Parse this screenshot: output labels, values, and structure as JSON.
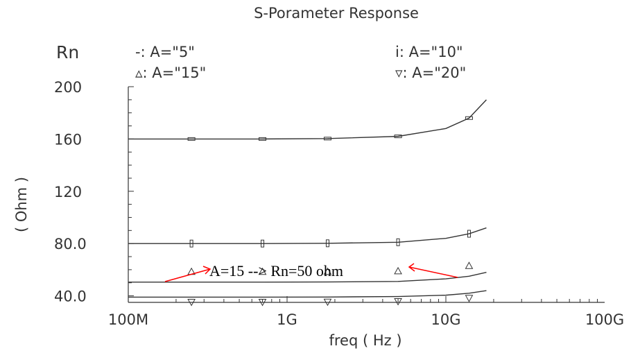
{
  "chart_data": {
    "type": "line",
    "title": "S-Porameter Response",
    "variable_label": "Rn",
    "xlabel": "freq ( Hz )",
    "ylabel": "( Ohm )",
    "x_scale": "log",
    "xlim": [
      100000000.0,
      100000000000.0
    ],
    "ylim": [
      35,
      200
    ],
    "xticks": [
      {
        "value": 100000000.0,
        "label": "100M"
      },
      {
        "value": 1000000000.0,
        "label": "1G"
      },
      {
        "value": 10000000000.0,
        "label": "10G"
      },
      {
        "value": 100000000000.0,
        "label": "100G"
      }
    ],
    "yticks": [
      {
        "value": 200,
        "label": "200"
      },
      {
        "value": 160,
        "label": "160"
      },
      {
        "value": 120,
        "label": "120"
      },
      {
        "value": 80,
        "label": "80.0"
      },
      {
        "value": 40,
        "label": "40.0"
      }
    ],
    "x": [
      100000000.0,
      250000000.0,
      700000000.0,
      1800000000.0,
      5000000000.0,
      10000000000.0,
      14000000000.0,
      18000000000.0
    ],
    "series": [
      {
        "legend": "-: A=\"5\"",
        "marker": "dash",
        "values": [
          160.0,
          160.0,
          160.0,
          160.3,
          162.0,
          168.0,
          176.0,
          190.0
        ]
      },
      {
        "legend": "i: A=\"10\"",
        "marker": "bar",
        "values": [
          80.0,
          80.0,
          80.0,
          80.2,
          81.0,
          84.0,
          87.5,
          92.0
        ]
      },
      {
        "legend": "▵: A=\"15\"",
        "marker": "triangle-up",
        "values": [
          50.5,
          50.5,
          50.5,
          50.6,
          51.0,
          53.0,
          55.0,
          58.0
        ]
      },
      {
        "legend": "▿: A=\"20\"",
        "marker": "triangle-down",
        "values": [
          39.0,
          39.0,
          39.0,
          39.1,
          39.5,
          40.5,
          42.0,
          44.0
        ]
      }
    ],
    "marker_x": [
      250000000.0,
      700000000.0,
      1800000000.0,
      5000000000.0,
      14000000000.0
    ],
    "annotation": {
      "text": "A=15 --> Rn=50 ohm",
      "color": "#ff0000"
    },
    "grid": false,
    "legend_position": "top"
  }
}
